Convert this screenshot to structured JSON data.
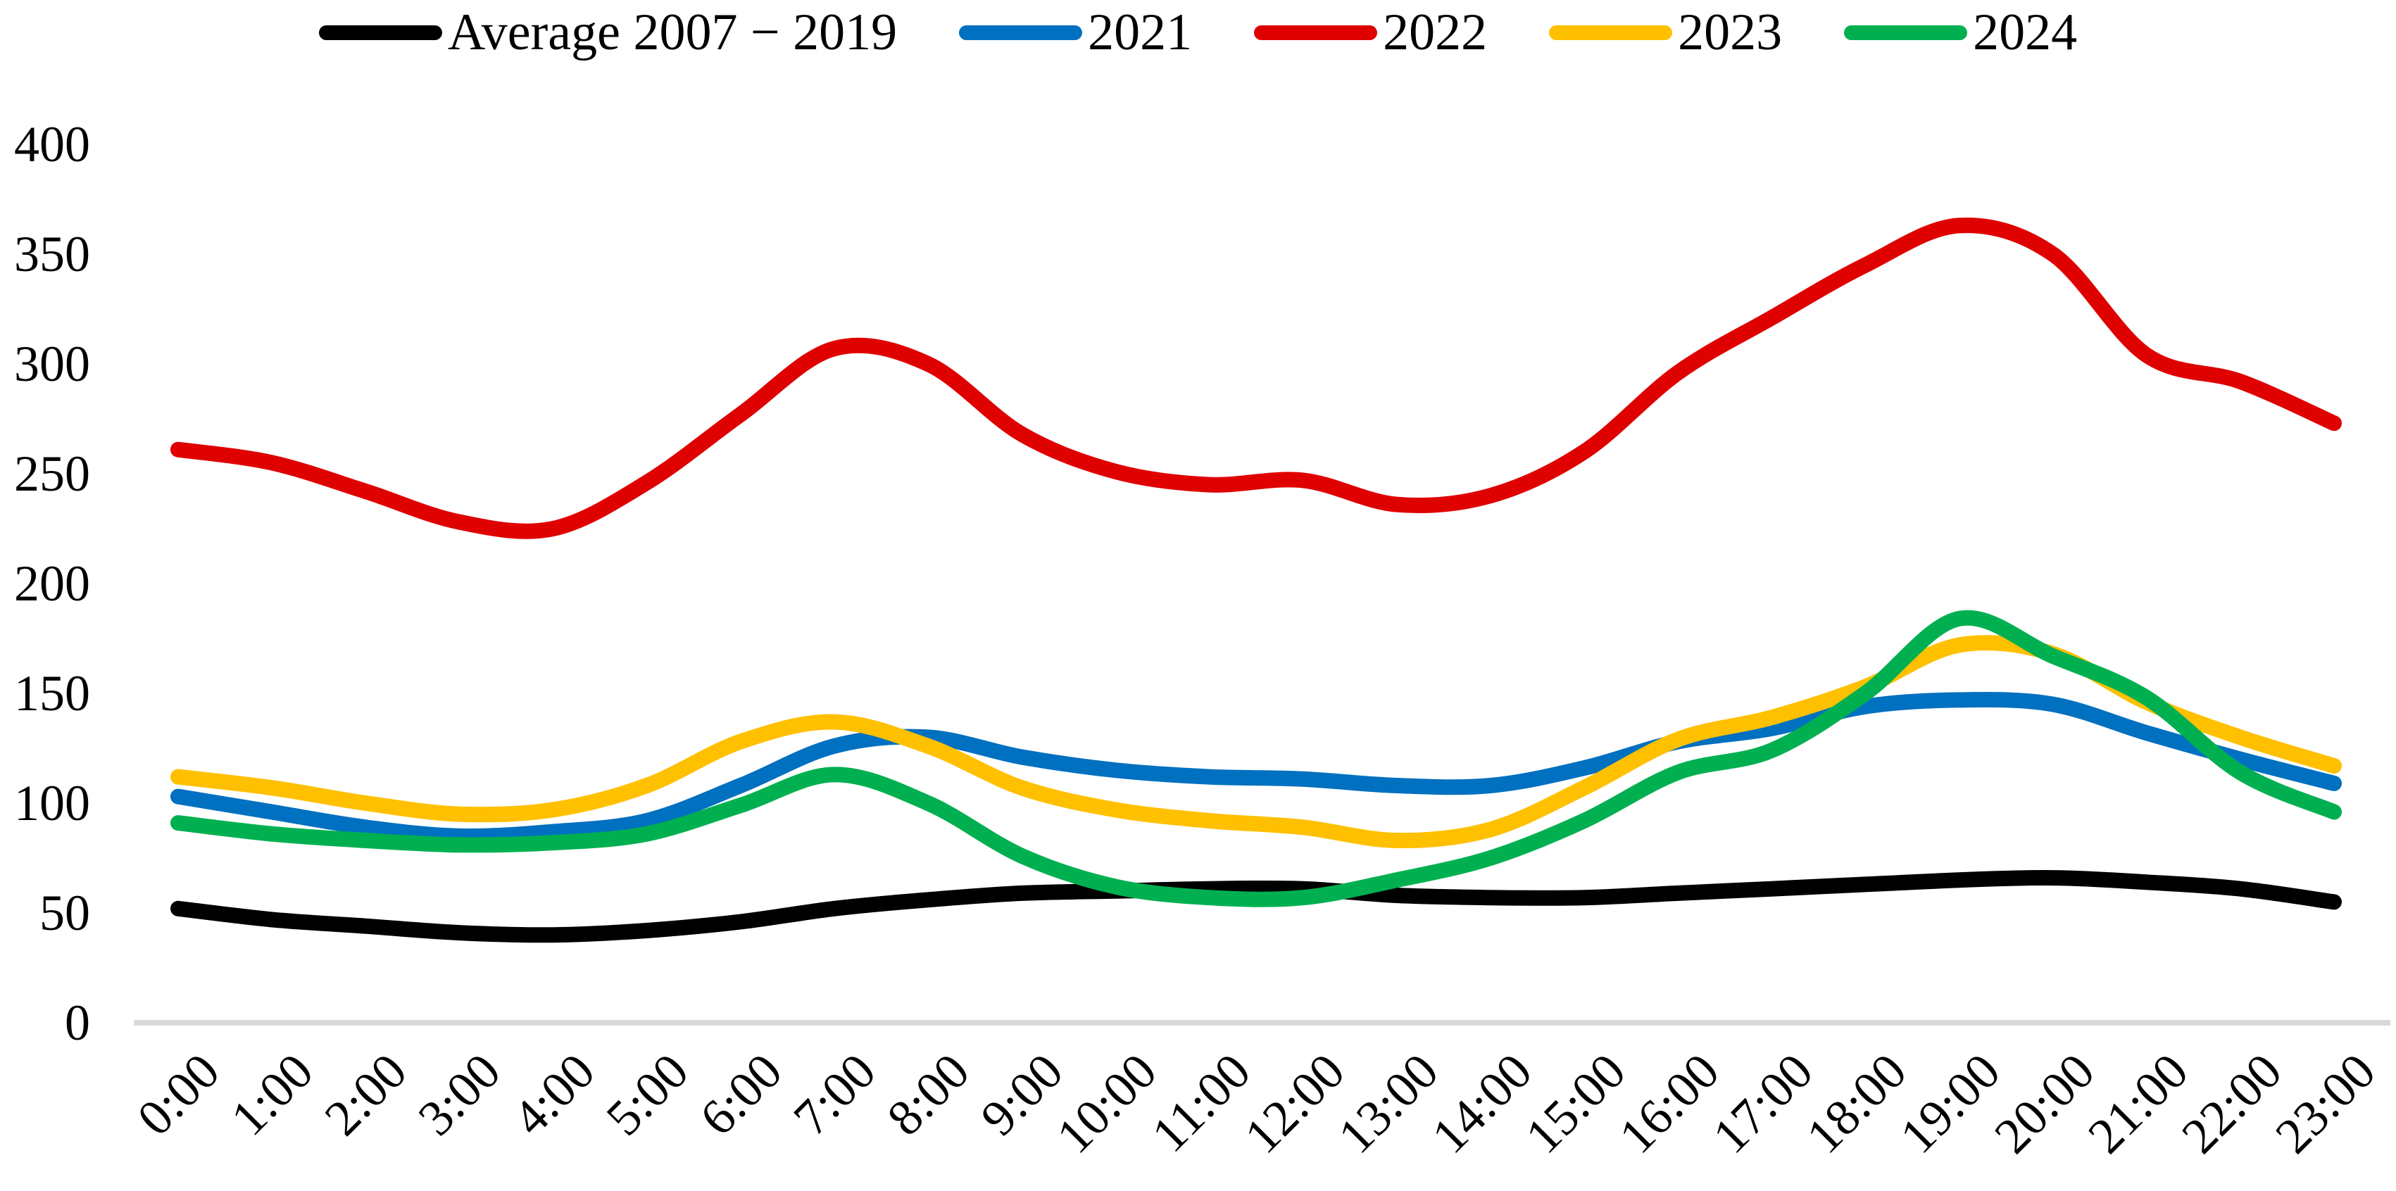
{
  "chart_data": {
    "type": "line",
    "title": "",
    "xlabel": "",
    "ylabel": "",
    "x_categories": [
      "0:00",
      "1:00",
      "2:00",
      "3:00",
      "4:00",
      "5:00",
      "6:00",
      "7:00",
      "8:00",
      "9:00",
      "10:00",
      "11:00",
      "12:00",
      "13:00",
      "14:00",
      "15:00",
      "16:00",
      "17:00",
      "18:00",
      "19:00",
      "20:00",
      "21:00",
      "22:00",
      "23:00"
    ],
    "y_ticks": [
      0,
      50,
      100,
      150,
      200,
      250,
      300,
      350,
      400
    ],
    "ylim": [
      0,
      400
    ],
    "grid": false,
    "smooth": true,
    "legend_position": "top",
    "axis_line_color": "#D9D9D9",
    "background_color": "#FFFFFF",
    "text_color": "#000000",
    "series": [
      {
        "name": "Average 2007 − 2019",
        "color": "#000000",
        "values": [
          52,
          47,
          44,
          41,
          40,
          42,
          46,
          52,
          56,
          59,
          60,
          61,
          61,
          58,
          57,
          57,
          59,
          61,
          63,
          65,
          66,
          64,
          61,
          55
        ]
      },
      {
        "name": "2021",
        "color": "#0070C0",
        "values": [
          103,
          96,
          89,
          85,
          87,
          92,
          108,
          126,
          130,
          121,
          115,
          112,
          111,
          108,
          108,
          116,
          128,
          134,
          144,
          147,
          145,
          132,
          120,
          109
        ]
      },
      {
        "name": "2022",
        "color": "#DF0000",
        "values": [
          261,
          255,
          242,
          228,
          225,
          246,
          277,
          307,
          300,
          268,
          251,
          245,
          247,
          236,
          240,
          260,
          296,
          321,
          345,
          363,
          350,
          304,
          292,
          273
        ]
      },
      {
        "name": "2023",
        "color": "#FFC000",
        "values": [
          112,
          107,
          100,
          95,
          97,
          108,
          128,
          137,
          126,
          107,
          97,
          92,
          89,
          83,
          88,
          107,
          129,
          139,
          153,
          172,
          168,
          146,
          130,
          117
        ]
      },
      {
        "name": "2024",
        "color": "#00B050",
        "values": [
          91,
          86,
          83,
          81,
          82,
          86,
          99,
          113,
          100,
          76,
          62,
          57,
          57,
          65,
          75,
          92,
          114,
          124,
          150,
          184,
          167,
          148,
          114,
          96
        ]
      }
    ]
  }
}
